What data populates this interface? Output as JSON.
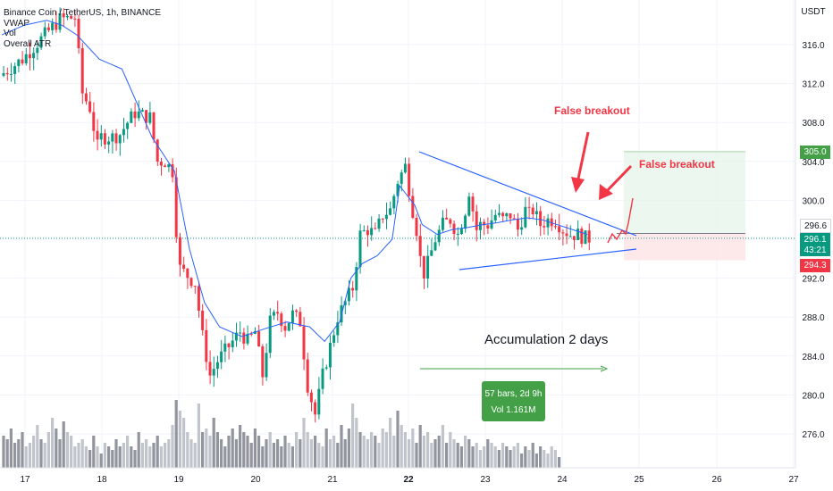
{
  "header": {
    "title": "Binance Coin / TetherUS, 1h, BINANCE",
    "indicators": [
      "VWAP",
      "Vol",
      "Overall ATR"
    ]
  },
  "chart_data": {
    "type": "candlestick",
    "symbol": "Binance Coin / TetherUS",
    "timeframe": "1h",
    "exchange": "BINANCE",
    "currency_label": "USDT",
    "y_ticks": [
      276.0,
      280.0,
      284.0,
      288.0,
      292.0,
      296.0,
      300.0,
      304.0,
      308.0,
      312.0,
      316.0
    ],
    "ylim": [
      272.0,
      320.5
    ],
    "x_ticks": [
      "17",
      "18",
      "19",
      "20",
      "21",
      "22",
      "23",
      "24",
      "25",
      "26",
      "27"
    ],
    "price_labels": {
      "target": "305.0",
      "current": "296.1",
      "countdown": "43:21",
      "stop": "294.3",
      "top": "296.6"
    },
    "price_path": [
      [
        0,
        312.8
      ],
      [
        6,
        314.5
      ],
      [
        12,
        317.0
      ],
      [
        16,
        318.6
      ],
      [
        20,
        318.8
      ],
      [
        22,
        311.0
      ],
      [
        24,
        309.5
      ],
      [
        26,
        305.5
      ],
      [
        27,
        306.5
      ],
      [
        30,
        306.5
      ],
      [
        32,
        306.8
      ],
      [
        34,
        308.0
      ],
      [
        36,
        309.0
      ],
      [
        40,
        308.5
      ],
      [
        42,
        304.0
      ],
      [
        44,
        304.0
      ],
      [
        46,
        303.0
      ],
      [
        47,
        297.0
      ],
      [
        48,
        293.0
      ],
      [
        52,
        291.5
      ],
      [
        54,
        286.0
      ],
      [
        56,
        282.0
      ],
      [
        58,
        283.5
      ],
      [
        61,
        285.0
      ],
      [
        64,
        286.5
      ],
      [
        66,
        285.5
      ],
      [
        68,
        286.5
      ],
      [
        70,
        282.0
      ],
      [
        72,
        287.5
      ],
      [
        74,
        288.5
      ],
      [
        76,
        287.0
      ],
      [
        78,
        288.3
      ],
      [
        80,
        287.5
      ],
      [
        82,
        281.0
      ],
      [
        84,
        278.0
      ],
      [
        86,
        282.0
      ],
      [
        88,
        285.0
      ],
      [
        90,
        288.0
      ],
      [
        94,
        291.0
      ],
      [
        96,
        296.5
      ],
      [
        98,
        297.0
      ],
      [
        100,
        296.5
      ],
      [
        102,
        298.5
      ],
      [
        104,
        299.0
      ],
      [
        106,
        302.0
      ],
      [
        108,
        303.5
      ],
      [
        110,
        299.0
      ],
      [
        111,
        297.0
      ],
      [
        112,
        294.0
      ],
      [
        113,
        292.5
      ],
      [
        114,
        293.5
      ],
      [
        116,
        296.0
      ],
      [
        118,
        297.5
      ],
      [
        120,
        298.0
      ],
      [
        122,
        296.5
      ],
      [
        124,
        299.0
      ],
      [
        125,
        301.0
      ],
      [
        127,
        297.0
      ],
      [
        128,
        297.5
      ],
      [
        130,
        297.5
      ],
      [
        132,
        298.5
      ],
      [
        134,
        298.0
      ],
      [
        136,
        298.5
      ],
      [
        138,
        297.0
      ],
      [
        140,
        299.0
      ],
      [
        141,
        298.5
      ],
      [
        142,
        299.0
      ],
      [
        144,
        297.5
      ],
      [
        146,
        298.0
      ],
      [
        148,
        298.0
      ],
      [
        150,
        297.0
      ],
      [
        152,
        296.5
      ],
      [
        154,
        296.5
      ],
      [
        156,
        296.1
      ]
    ],
    "vwap_path": [
      [
        0,
        317.0
      ],
      [
        6,
        318.0
      ],
      [
        12,
        318.5
      ],
      [
        16,
        318.0
      ],
      [
        20,
        317.0
      ],
      [
        26,
        314.5
      ],
      [
        32,
        313.5
      ],
      [
        40,
        306.5
      ],
      [
        46,
        303.0
      ],
      [
        50,
        295.0
      ],
      [
        54,
        289.5
      ],
      [
        58,
        287.0
      ],
      [
        64,
        286.0
      ],
      [
        70,
        286.8
      ],
      [
        76,
        287.5
      ],
      [
        82,
        287.0
      ],
      [
        86,
        285.5
      ],
      [
        90,
        287.5
      ],
      [
        93,
        292.0
      ],
      [
        96,
        293.5
      ],
      [
        100,
        294.3
      ],
      [
        104,
        296.0
      ],
      [
        106,
        301.5
      ],
      [
        108,
        300.5
      ],
      [
        110,
        299.5
      ],
      [
        112,
        297.5
      ],
      [
        116,
        296.5
      ],
      [
        120,
        297.0
      ],
      [
        124,
        297.2
      ],
      [
        128,
        297.5
      ],
      [
        132,
        297.7
      ],
      [
        136,
        298.0
      ],
      [
        140,
        298.2
      ],
      [
        144,
        298.0
      ],
      [
        148,
        297.5
      ],
      [
        152,
        297.0
      ],
      [
        156,
        296.5
      ]
    ],
    "volume_profile": [
      0.45,
      0.4,
      0.55,
      0.35,
      0.4,
      0.5,
      0.3,
      0.35,
      0.45,
      0.6,
      0.4,
      0.35,
      0.5,
      0.7,
      0.55,
      0.4,
      0.65,
      0.5,
      0.45,
      0.3,
      0.35,
      0.4,
      0.3,
      0.25,
      0.45,
      0.3,
      0.2,
      0.35,
      0.3,
      0.25,
      0.4,
      0.3,
      0.35,
      0.45,
      0.3,
      0.25,
      0.5,
      0.35,
      0.4,
      0.3,
      0.35,
      0.45,
      0.3,
      0.35,
      0.4,
      0.6,
      0.95,
      0.8,
      0.7,
      0.5,
      0.4,
      0.35,
      0.9,
      0.5,
      0.55,
      0.45,
      0.7,
      0.5,
      0.4,
      0.3,
      0.45,
      0.55,
      0.4,
      0.6,
      0.5,
      0.45,
      0.35,
      0.55,
      0.45,
      0.3,
      0.4,
      0.5,
      0.35,
      0.4,
      0.3,
      0.45,
      0.35,
      0.3,
      0.5,
      0.4,
      0.7,
      0.5,
      0.4,
      0.45,
      0.35,
      0.3,
      0.55,
      0.4,
      0.45,
      0.35,
      0.6,
      0.4,
      0.55,
      0.9,
      0.7,
      0.5,
      0.45,
      0.4,
      0.5,
      0.45,
      0.35,
      0.55,
      0.5,
      0.7,
      0.45,
      0.8,
      0.6,
      0.5,
      0.4,
      0.55,
      0.35,
      0.6,
      0.45,
      0.5,
      0.35,
      0.4,
      0.45,
      0.6,
      0.35,
      0.5,
      0.4,
      0.35,
      0.3,
      0.45,
      0.4,
      0.3,
      0.35,
      0.25,
      0.3,
      0.4,
      0.35,
      0.3,
      0.25,
      0.35,
      0.3,
      0.25,
      0.3,
      0.35,
      0.2,
      0.3,
      0.25,
      0.35,
      0.2,
      0.3,
      0.25,
      0.2,
      0.3,
      0.25,
      0.15
    ],
    "annotations": [
      {
        "text": "False breakout",
        "color": "#f23645"
      },
      {
        "text": "False breakout",
        "color": "#f23645"
      },
      {
        "text": "Accumulation 2 days",
        "color": "#131722"
      }
    ],
    "measure_box": {
      "line1": "57 bars, 2d 9h",
      "line2": "Vol 1.161M"
    },
    "colors": {
      "up": "#089981",
      "down": "#f23645",
      "vwap": "#2962ff",
      "triangle": "#2962ff",
      "profit": "#e6f4ea",
      "loss": "#fde4e6",
      "measure": "#43a047"
    }
  }
}
